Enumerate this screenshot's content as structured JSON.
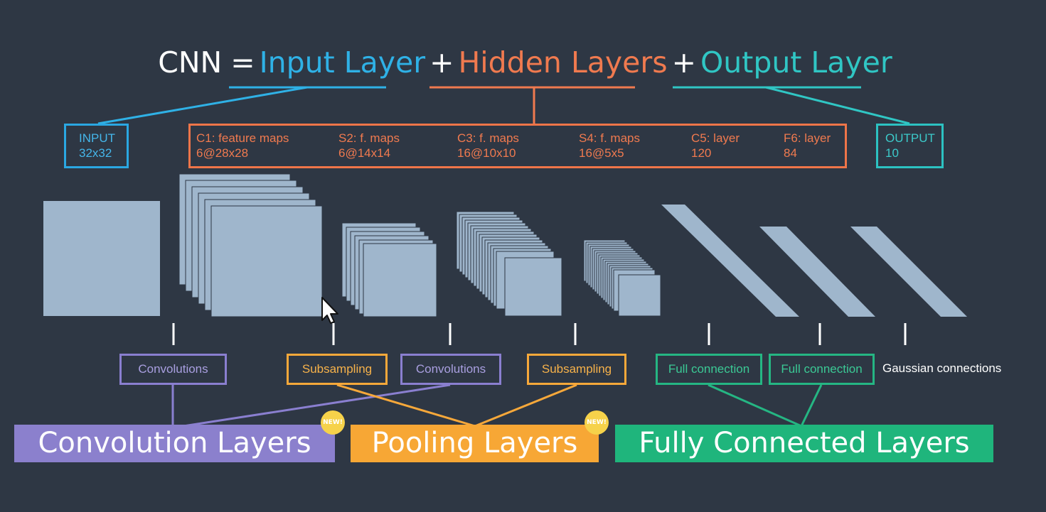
{
  "title": {
    "prefix": "CNN",
    "equals": "=",
    "input": "Input Layer",
    "plus1": "+",
    "hidden": "Hidden Layers",
    "plus2": "+",
    "output": "Output Layer"
  },
  "input_box": {
    "line1": "INPUT",
    "line2": "32x32"
  },
  "hidden_box": {
    "columns": [
      {
        "line1": "C1:  feature maps",
        "line2": "6@28x28"
      },
      {
        "line1": "S2:  f. maps",
        "line2": "6@14x14"
      },
      {
        "line1": "C3:  f. maps",
        "line2": "16@10x10"
      },
      {
        "line1": "S4:  f. maps",
        "line2": "16@5x5"
      },
      {
        "line1": "C5:  layer",
        "line2": "120"
      },
      {
        "line1": "F6:  layer",
        "line2": "84"
      }
    ]
  },
  "output_box": {
    "line1": "OUTPUT",
    "line2": "10"
  },
  "operations": [
    {
      "label": "Convolutions",
      "kind": "conv"
    },
    {
      "label": "Subsampling",
      "kind": "sub"
    },
    {
      "label": "Convolutions",
      "kind": "conv"
    },
    {
      "label": "Subsampling",
      "kind": "sub"
    },
    {
      "label": "Full connection",
      "kind": "full"
    },
    {
      "label": "Full connection",
      "kind": "full"
    },
    {
      "label": "Gaussian connections",
      "kind": "plain"
    }
  ],
  "layer_groups": {
    "convolution": "Convolution Layers",
    "pooling": "Pooling Layers",
    "fully_connected": "Fully Connected Layers"
  },
  "badges": {
    "pooling": "NEW!",
    "fully_connected": "NEW!"
  },
  "colors": {
    "background": "#2e3744",
    "input": "#2fb1e6",
    "hidden": "#f07a4f",
    "output": "#30c6c4",
    "convolution": "#8b80cd",
    "pooling": "#f7a735",
    "fully_connected": "#1fb57c",
    "feature_map": "#9fb6cc"
  }
}
